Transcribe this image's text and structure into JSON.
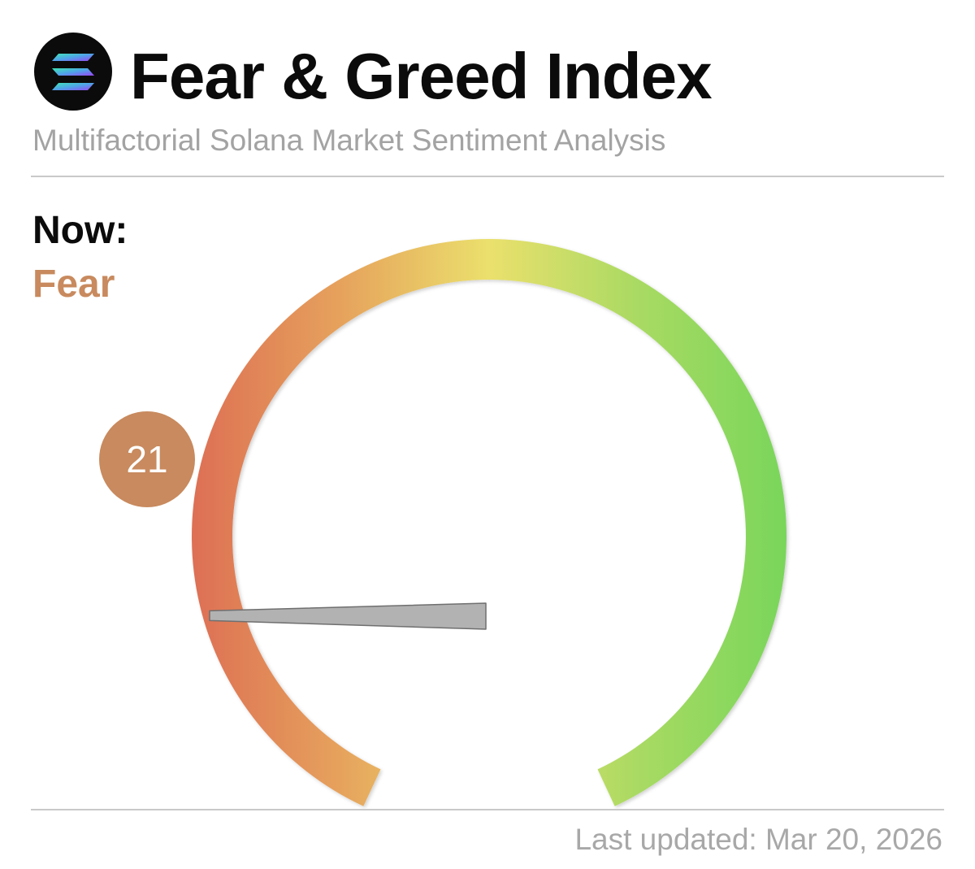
{
  "header": {
    "logo_icon": "solana-logo-icon",
    "title": "Fear & Greed Index",
    "subtitle": "Multifactorial Solana Market Sentiment Analysis"
  },
  "now": {
    "label": "Now:",
    "sentiment": "Fear",
    "sentiment_color": "#c88a5e"
  },
  "chart_data": {
    "type": "gauge",
    "value": 21,
    "value_label": "21",
    "range": [
      0,
      100
    ],
    "gradient_colors": [
      "#dd6f55",
      "#e6a25c",
      "#ebe06d",
      "#a9da63",
      "#79d65a"
    ],
    "badge_color": "#c88a5e",
    "needle_color": "#b2b2b2"
  },
  "footer": {
    "last_updated": "Last updated: Mar 20, 2026"
  }
}
